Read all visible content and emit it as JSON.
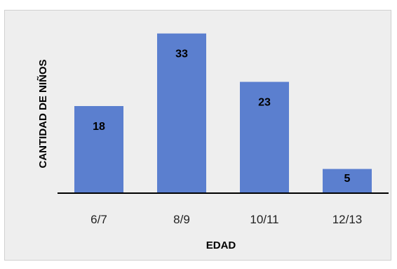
{
  "chart_data": {
    "type": "bar",
    "title": "",
    "xlabel": "EDAD",
    "ylabel": "CANTIDAD DE NIÑOS",
    "categories": [
      "6/7",
      "8/9",
      "10/11",
      "12/13"
    ],
    "values": [
      18,
      33,
      23,
      5
    ],
    "data_labels": [
      "18",
      "33",
      "23",
      "5"
    ],
    "ylim": [
      0,
      36
    ],
    "grid": false,
    "legend": "none",
    "bar_color": "#5b7fcf",
    "background_color": "#eeeeee"
  }
}
